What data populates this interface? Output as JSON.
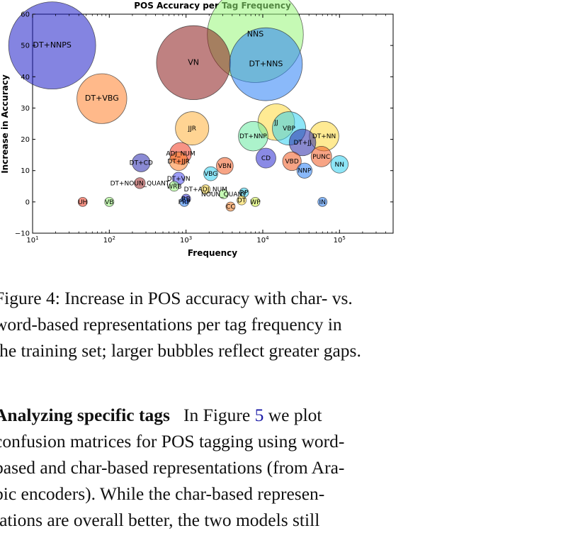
{
  "chart_data": {
    "type": "scatter",
    "title": "POS Accuracy per Tag Frequency",
    "xlabel": "Frequency",
    "ylabel": "Increase in Accuracy",
    "x_scale": "log",
    "xlim": [
      10,
      500000
    ],
    "ylim": [
      -10,
      60
    ],
    "yticks": [
      -10,
      0,
      10,
      20,
      30,
      40,
      50,
      60
    ],
    "xtick_labels": [
      "10^1",
      "10^2",
      "10^3",
      "10^4",
      "10^5"
    ],
    "xtick_values": [
      10,
      100,
      1000,
      10000,
      100000
    ],
    "grid": false,
    "points": [
      {
        "label": "DT+NNPS",
        "x": 18,
        "y": 50,
        "color": "#1f1fc8"
      },
      {
        "label": "NNS",
        "x": 8000,
        "y": 53.5,
        "color": "#98f578"
      },
      {
        "label": "VN",
        "x": 1250,
        "y": 44.5,
        "color": "#8b1a1a"
      },
      {
        "label": "DT+NNS",
        "x": 11000,
        "y": 44,
        "color": "#2a7ff5"
      },
      {
        "label": "DT+VBG",
        "x": 80,
        "y": 33,
        "color": "#ff7f2a"
      },
      {
        "label": "JJR",
        "x": 1200,
        "y": 23.5,
        "color": "#ffb03a"
      },
      {
        "label": "JJ",
        "x": 15000,
        "y": 25.5,
        "color": "#ffd83a"
      },
      {
        "label": "VBP",
        "x": 22000,
        "y": 23.5,
        "color": "#30d0f0"
      },
      {
        "label": "DT+NNP",
        "x": 7500,
        "y": 21,
        "color": "#68eaa0"
      },
      {
        "label": "DT+JJ",
        "x": 33000,
        "y": 19,
        "color": "#2a2aa8"
      },
      {
        "label": "DT+NN",
        "x": 63000,
        "y": 21,
        "color": "#ffd83a"
      },
      {
        "label": "ADJ_NUM",
        "x": 850,
        "y": 15.5,
        "color": "#f03a20"
      },
      {
        "label": "DT+JJR",
        "x": 800,
        "y": 13,
        "color": "#ff7f2a"
      },
      {
        "label": "DT+CD",
        "x": 260,
        "y": 12.5,
        "color": "#2a2ab0"
      },
      {
        "label": "CD",
        "x": 11000,
        "y": 14,
        "color": "#2a2ad0"
      },
      {
        "label": "VBD",
        "x": 24000,
        "y": 13,
        "color": "#f05a20"
      },
      {
        "label": "PUNC",
        "x": 58000,
        "y": 14.5,
        "color": "#f05a20"
      },
      {
        "label": "NN",
        "x": 100000,
        "y": 12,
        "color": "#30d0f0"
      },
      {
        "label": "VBN",
        "x": 3200,
        "y": 11.5,
        "color": "#f05a20"
      },
      {
        "label": "NNP",
        "x": 35000,
        "y": 10,
        "color": "#2a7ff5"
      },
      {
        "label": "VBG",
        "x": 2100,
        "y": 9,
        "color": "#30d0f0"
      },
      {
        "label": "DT+VN",
        "x": 800,
        "y": 7.5,
        "color": "#4a4af0"
      },
      {
        "label": "DT+NOUN_QUANT",
        "x": 250,
        "y": 6,
        "color": "#a02a2a"
      },
      {
        "label": "WRB",
        "x": 700,
        "y": 5,
        "color": "#98f578"
      },
      {
        "label": "DT+ADJ_NUM",
        "x": 1800,
        "y": 4,
        "color": "#ffd83a"
      },
      {
        "label": "NOUN_QUANT",
        "x": 3100,
        "y": 2.5,
        "color": "#98f578"
      },
      {
        "label": "RP",
        "x": 5700,
        "y": 3,
        "color": "#30d0f0"
      },
      {
        "label": "RB",
        "x": 1000,
        "y": 1,
        "color": "#2a2ad0"
      },
      {
        "label": "PRP",
        "x": 950,
        "y": 0,
        "color": "#2a7ff5"
      },
      {
        "label": "DT",
        "x": 5300,
        "y": 0.5,
        "color": "#ffd83a"
      },
      {
        "label": "WP",
        "x": 8000,
        "y": 0,
        "color": "#d0f040"
      },
      {
        "label": "CC",
        "x": 3800,
        "y": -1.5,
        "color": "#f07a20"
      },
      {
        "label": "UH",
        "x": 45,
        "y": 0,
        "color": "#f03a20"
      },
      {
        "label": "VB",
        "x": 100,
        "y": 0,
        "color": "#98f578"
      },
      {
        "label": "IN",
        "x": 60000,
        "y": 0,
        "color": "#2a7ff5"
      }
    ]
  },
  "caption": {
    "lines": [
      "Figure 4: Increase in POS accuracy with char- vs.",
      "word-based representations per tag frequency in",
      "the training set; larger bubbles reflect greater gaps."
    ]
  },
  "body": {
    "heading": "Analyzing specific tags",
    "line1_a": "In Figure ",
    "line1_ref": "5",
    "line1_b": " we plot",
    "lines": [
      "confusion matrices for POS tagging using word-",
      "based and char-based representations (from Ara-",
      "bic encoders).  While the char-based represen-",
      "tations are overall better, the two models still"
    ]
  }
}
